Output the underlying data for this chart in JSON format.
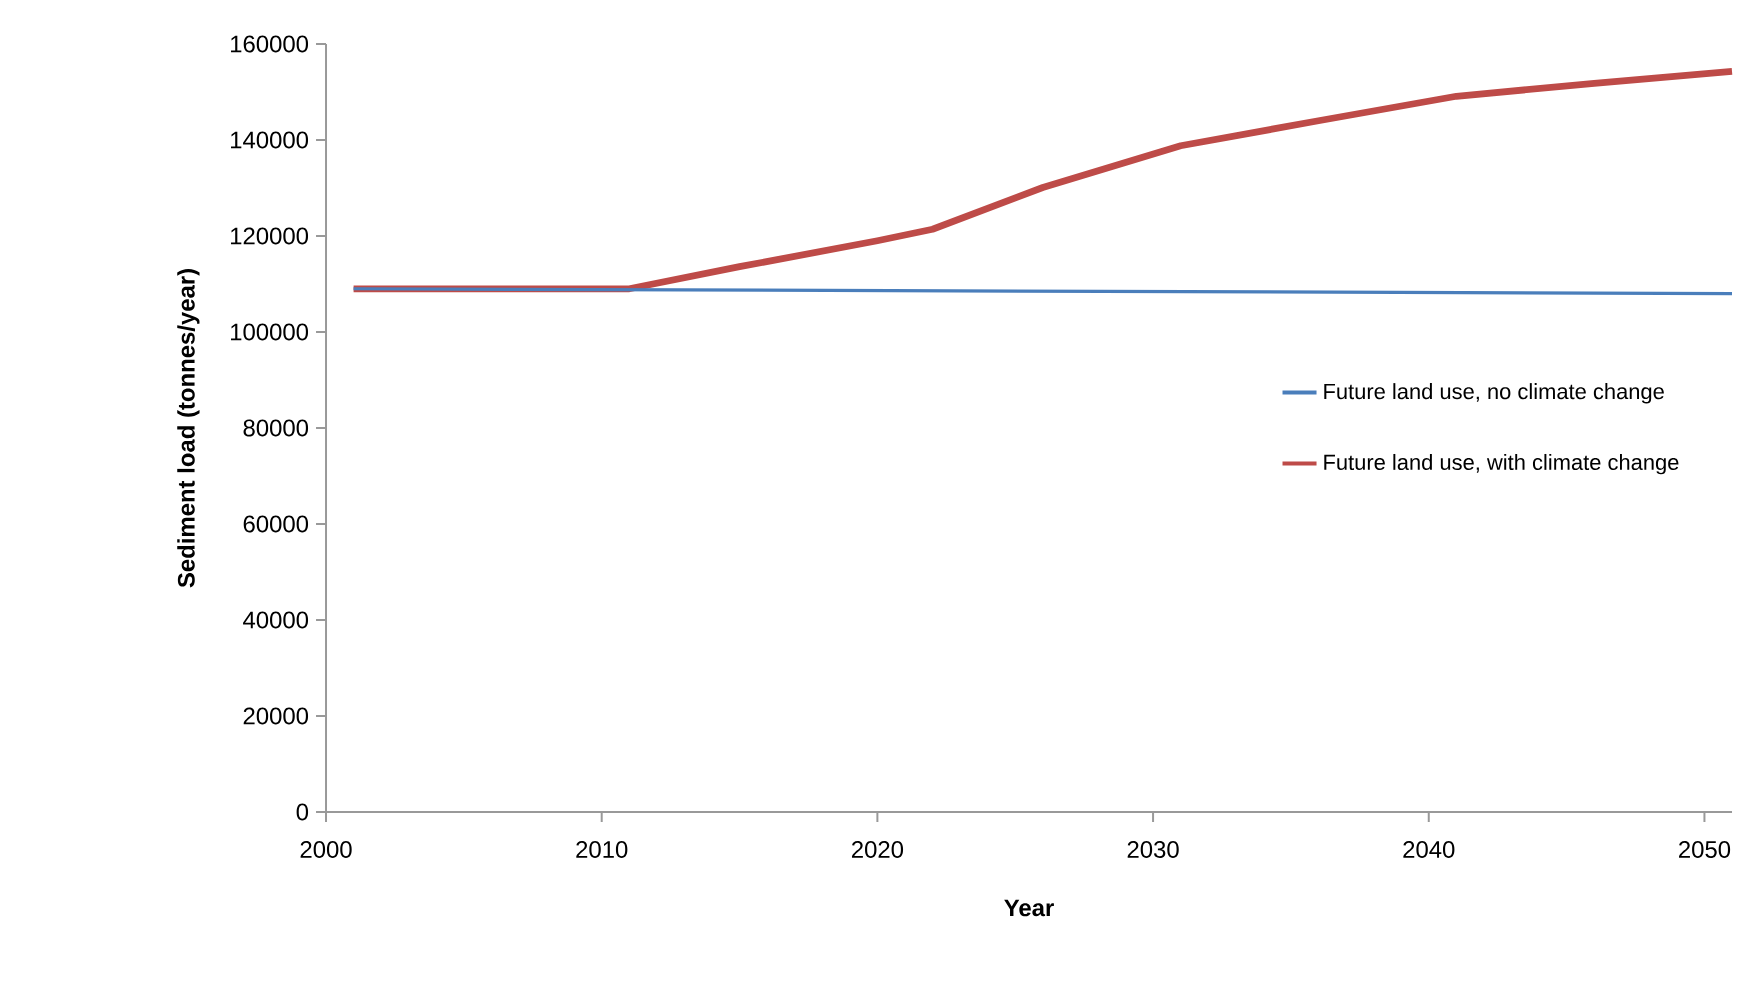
{
  "chart_data": {
    "type": "line",
    "xlabel": "Year",
    "ylabel": "Sediment load (tonnes/year)",
    "xlim": [
      2000,
      2051
    ],
    "xticks": [
      2000,
      2010,
      2020,
      2030,
      2040,
      2050
    ],
    "ylim": [
      0,
      160000
    ],
    "yticks": [
      0,
      20000,
      40000,
      60000,
      80000,
      100000,
      120000,
      140000,
      160000
    ],
    "grid": false,
    "legend": "right",
    "marker": "none",
    "line_style": "solid",
    "series": [
      {
        "name": "Future land use, no climate change",
        "color": "#4a7ebb",
        "x": [
          2001,
          2051
        ],
        "values": [
          109000,
          108000
        ]
      },
      {
        "name": "Future land use, with climate change",
        "color": "#be4b48",
        "x": [
          2001,
          2011,
          2015,
          2020,
          2022,
          2026,
          2031,
          2036,
          2041,
          2046,
          2051
        ],
        "values": [
          109000,
          109000,
          113600,
          119000,
          121400,
          130100,
          138800,
          144000,
          149100,
          151800,
          154300
        ]
      }
    ]
  }
}
